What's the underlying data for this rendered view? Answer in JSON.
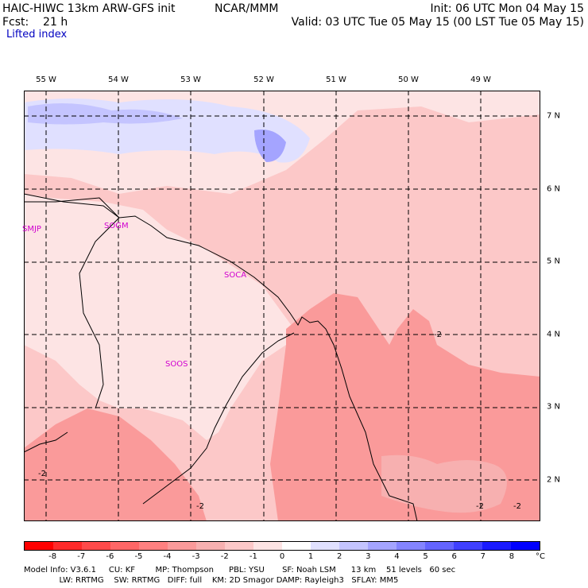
{
  "header": {
    "model": "HAIC-HIWC 13km ARW-GFS init",
    "org": "NCAR/MMM",
    "init": "Init: 06 UTC Mon 04 May 15",
    "fcst": "Fcst:    21 h",
    "valid": "Valid: 03 UTC Tue 05 May 15 (00 LST Tue 05 May 15)",
    "field": "Lifted index"
  },
  "map": {
    "lon_labels": [
      "55 W",
      "54 W",
      "53 W",
      "52 W",
      "51 W",
      "50 W",
      "49 W"
    ],
    "lat_labels": [
      "7 N",
      "6 N",
      "5 N",
      "4 N",
      "3 N",
      "2 N"
    ],
    "stations": [
      "SMJP",
      "SOGM",
      "SOCA",
      "SOOS"
    ],
    "contour_labels": [
      "-2",
      "-2",
      "-2",
      "-2",
      "-2"
    ]
  },
  "colorbar": {
    "ticks": [
      "-8",
      "-7",
      "-6",
      "-5",
      "-4",
      "-3",
      "-2",
      "-1",
      "0",
      "1",
      "2",
      "3",
      "4",
      "5",
      "6",
      "7",
      "8"
    ],
    "unit": "°C",
    "colors": [
      "#ff0000",
      "#ff2a2a",
      "#ff4a4a",
      "#ff6666",
      "#ff8080",
      "#fa9a9a",
      "#f7b0b0",
      "#fcc8c8",
      "#fde4e4",
      "#ffffff",
      "#e0e0ff",
      "#c4c4ff",
      "#a4a4ff",
      "#8484ff",
      "#6464ff",
      "#4040ff",
      "#1a1aff",
      "#0000ff"
    ]
  },
  "footer": {
    "line1": "Model Info: V3.6.1     CU: KF        MP: Thompson      PBL: YSU       SF: Noah LSM      13 km    51 levels   60 sec",
    "line2": "              LW: RRTMG    SW: RRTMG   DIFF: full    KM: 2D Smagor DAMP: Rayleigh3   SFLAY: MM5"
  }
}
